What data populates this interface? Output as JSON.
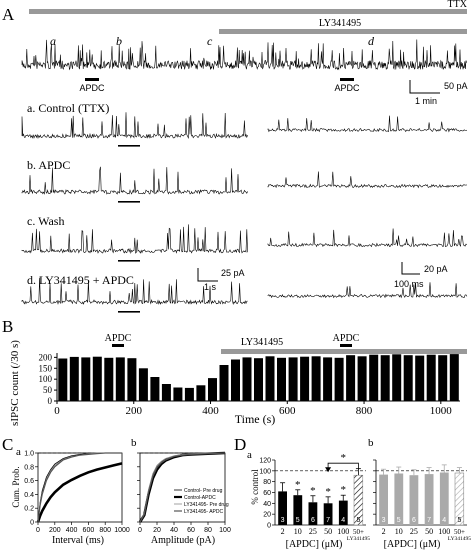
{
  "panel_a": {
    "letter": "A",
    "ttx_label": "TTX",
    "ly_label": "LY341495",
    "apdc_label": "APDC",
    "epoch_labels": [
      "a",
      "b",
      "c",
      "d"
    ],
    "scale_y": "50 pA",
    "scale_x": "1 min",
    "traces": [
      {
        "label": "a. Control (TTX)"
      },
      {
        "label": "b. APDC"
      },
      {
        "label": "c. Wash"
      },
      {
        "label": "d. LY341495 + APDC"
      }
    ],
    "scale_left_y": "25 pA",
    "scale_left_x": "1 s",
    "scale_right_y": "20 pA",
    "scale_right_x": "100 ms"
  },
  "panel_b": {
    "letter": "B",
    "apdc_label": "APDC",
    "ly_label": "LY341495",
    "ylabel": "sIPSC count (/30 s)",
    "xlabel": "Time (s)",
    "xticks": [
      "0",
      "200",
      "400",
      "600",
      "800",
      "1000"
    ],
    "yticks": [
      "0",
      "50",
      "100",
      "150",
      "200"
    ]
  },
  "panel_c": {
    "letter": "C",
    "sub_a": "a",
    "sub_b": "b",
    "ylabel": "Cum. Prob.",
    "xlabel_a": "Interval (ms)",
    "xlabel_b": "Amplitude (pA)",
    "xticks_a": [
      "0",
      "200",
      "400",
      "600",
      "800",
      "1000"
    ],
    "xticks_b": [
      "0",
      "20",
      "40",
      "60",
      "80",
      "100"
    ],
    "yticks": [
      "0",
      "0.2",
      "0.4",
      "0.6",
      "0.8",
      "1.0"
    ],
    "legend": [
      "Control- Pre drug",
      "Control-APDC",
      "LY341495- Pre drug",
      "LY341495- APDC"
    ]
  },
  "panel_d": {
    "letter": "D",
    "sub_a": "a",
    "sub_b": "b",
    "ylabel": "% control",
    "xlabel": "[APDC] (μM)",
    "yticks": [
      "0",
      "20",
      "40",
      "60",
      "80",
      "100",
      "120"
    ],
    "categories": [
      "2",
      "10",
      "25",
      "50",
      "100",
      "50+ LY341495"
    ],
    "star": "*",
    "n_values": [
      "3",
      "5",
      "6",
      "7",
      "4",
      "5"
    ]
  },
  "colors": {
    "bar_black": "#000000",
    "bar_grey": "#aaaaaa",
    "bar_light": "#cccccc"
  },
  "chart_data": [
    {
      "type": "bar",
      "title": "",
      "xlabel": "Time (s)",
      "ylabel": "sIPSC count (/30 s)",
      "xlim": [
        0,
        1050
      ],
      "ylim": [
        0,
        220
      ],
      "x": [
        15,
        45,
        75,
        105,
        135,
        165,
        195,
        225,
        255,
        285,
        315,
        345,
        375,
        405,
        435,
        465,
        495,
        525,
        555,
        585,
        615,
        645,
        675,
        705,
        735,
        765,
        795,
        825,
        855,
        885,
        915,
        945,
        975,
        1005,
        1035
      ],
      "values": [
        195,
        202,
        200,
        203,
        198,
        200,
        196,
        150,
        110,
        78,
        62,
        60,
        72,
        105,
        165,
        190,
        200,
        196,
        205,
        198,
        200,
        203,
        205,
        200,
        198,
        210,
        205,
        212,
        210,
        214,
        210,
        208,
        212,
        210,
        215
      ]
    },
    {
      "type": "line",
      "title": "",
      "xlabel": "Interval (ms)",
      "ylabel": "Cum. Prob.",
      "xlim": [
        0,
        1000
      ],
      "ylim": [
        0,
        1.0
      ],
      "x": [
        0,
        25,
        50,
        100,
        150,
        200,
        300,
        400,
        500,
        600,
        700,
        800,
        900,
        1000
      ],
      "series": [
        {
          "name": "Control- Pre drug",
          "values": [
            0,
            0.28,
            0.45,
            0.65,
            0.76,
            0.84,
            0.92,
            0.96,
            0.98,
            0.99,
            1.0,
            1.0,
            1.0,
            1.0
          ]
        },
        {
          "name": "Control-APDC",
          "values": [
            0,
            0.09,
            0.16,
            0.27,
            0.36,
            0.43,
            0.54,
            0.61,
            0.67,
            0.72,
            0.76,
            0.79,
            0.82,
            0.85
          ]
        },
        {
          "name": "LY341495- Pre drug",
          "values": [
            0,
            0.26,
            0.42,
            0.62,
            0.74,
            0.82,
            0.91,
            0.95,
            0.97,
            0.99,
            1.0,
            1.0,
            1.0,
            1.0
          ]
        },
        {
          "name": "LY341495- APDC",
          "values": [
            0,
            0.24,
            0.4,
            0.6,
            0.72,
            0.8,
            0.9,
            0.94,
            0.97,
            0.98,
            0.99,
            1.0,
            1.0,
            1.0
          ]
        }
      ]
    },
    {
      "type": "line",
      "title": "",
      "xlabel": "Amplitude (pA)",
      "ylabel": "",
      "xlim": [
        0,
        100
      ],
      "ylim": [
        0,
        1.0
      ],
      "x": [
        0,
        5,
        10,
        15,
        20,
        25,
        30,
        40,
        50,
        60,
        80,
        100
      ],
      "series": [
        {
          "name": "Control- Pre drug",
          "values": [
            0,
            0.12,
            0.45,
            0.68,
            0.8,
            0.87,
            0.91,
            0.95,
            0.97,
            0.98,
            0.99,
            1.0
          ]
        },
        {
          "name": "Control-APDC",
          "values": [
            0,
            0.1,
            0.4,
            0.63,
            0.76,
            0.84,
            0.89,
            0.94,
            0.97,
            0.98,
            0.99,
            1.0
          ]
        },
        {
          "name": "LY341495- Pre drug",
          "values": [
            0,
            0.13,
            0.47,
            0.7,
            0.82,
            0.88,
            0.92,
            0.96,
            0.98,
            0.99,
            1.0,
            1.0
          ]
        },
        {
          "name": "LY341495- APDC",
          "values": [
            0,
            0.11,
            0.43,
            0.66,
            0.79,
            0.86,
            0.9,
            0.95,
            0.97,
            0.98,
            0.99,
            1.0
          ]
        }
      ]
    },
    {
      "type": "bar",
      "title": "",
      "xlabel": "[APDC] (μM)",
      "ylabel": "% control",
      "ylim": [
        0,
        120
      ],
      "categories": [
        "2",
        "10",
        "25",
        "50",
        "100",
        "50+ LY341495"
      ],
      "values": [
        62,
        55,
        42,
        40,
        45,
        92
      ],
      "errors": [
        16,
        10,
        12,
        12,
        10,
        12
      ],
      "significant": [
        false,
        true,
        true,
        true,
        true,
        false
      ],
      "n": [
        "3",
        "5",
        "6",
        "7",
        "4",
        "5"
      ]
    },
    {
      "type": "bar",
      "title": "",
      "xlabel": "[APDC] (μM)",
      "ylabel": "",
      "ylim": [
        0,
        120
      ],
      "categories": [
        "2",
        "10",
        "25",
        "50",
        "100",
        "50+ LY341495"
      ],
      "values": [
        93,
        95,
        92,
        94,
        97,
        96
      ],
      "errors": [
        10,
        12,
        10,
        12,
        14,
        10
      ],
      "n": [
        "3",
        "5",
        "6",
        "7",
        "4",
        "5"
      ]
    }
  ]
}
